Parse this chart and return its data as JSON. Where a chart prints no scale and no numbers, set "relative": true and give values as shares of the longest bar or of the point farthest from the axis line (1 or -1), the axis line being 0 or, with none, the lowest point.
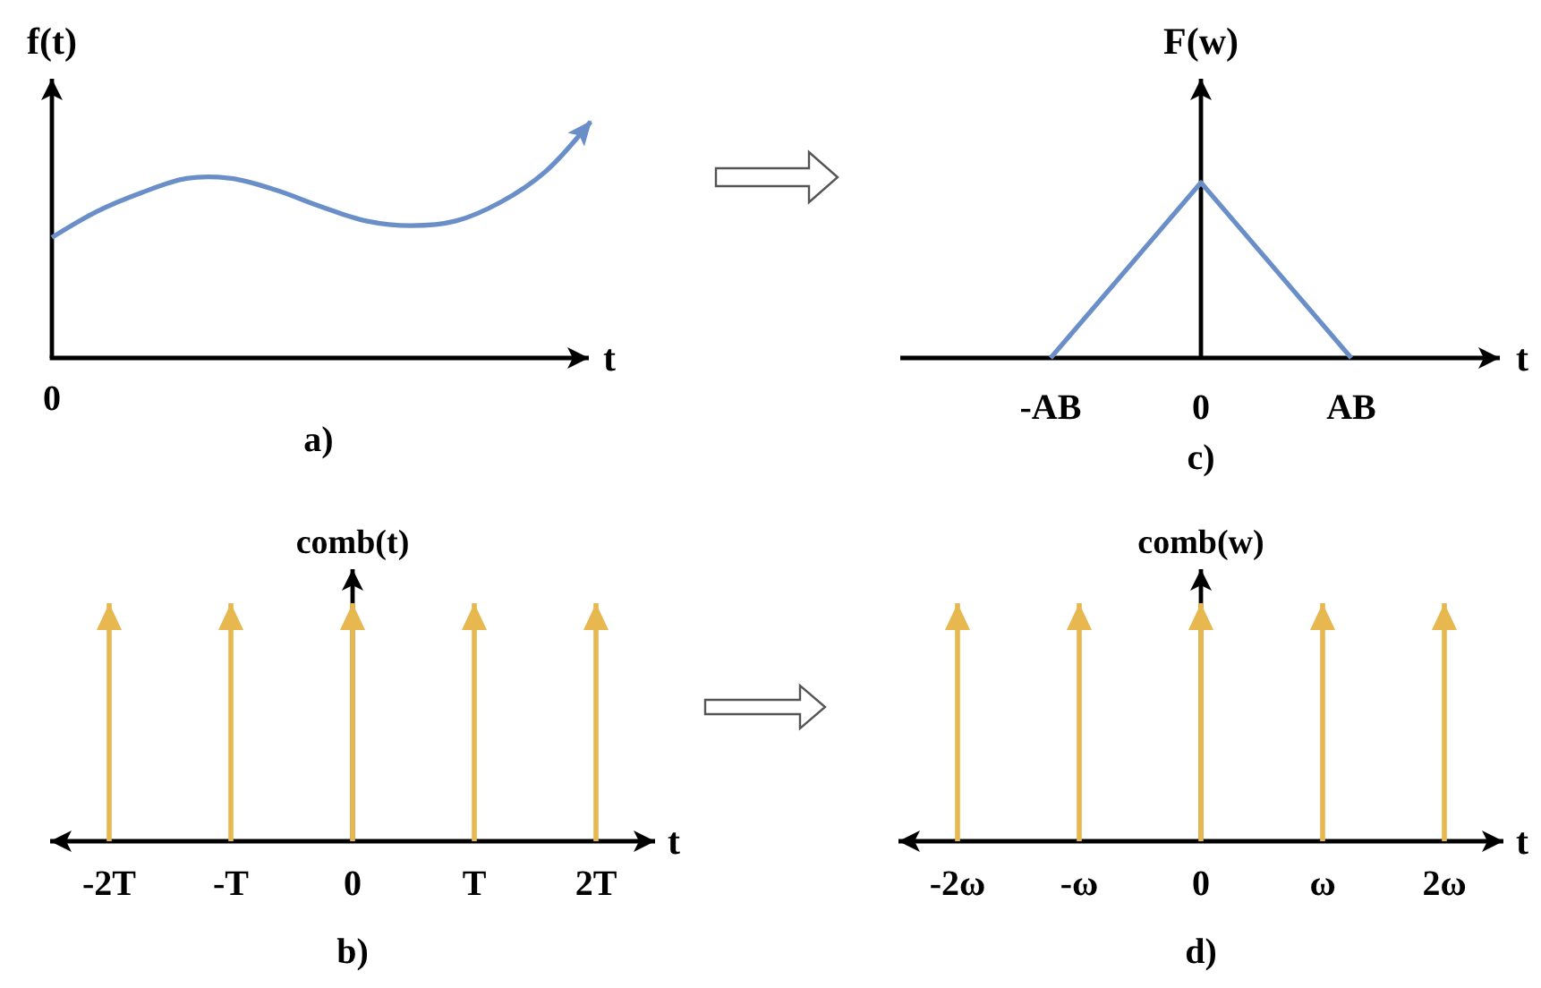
{
  "chart_data": [
    {
      "type": "line",
      "title": "a)",
      "xlabel": "t",
      "ylabel": "f(t)",
      "relative": true,
      "categories": [
        null,
        null,
        null,
        null,
        null,
        null,
        null,
        null,
        null,
        null,
        null,
        null,
        null
      ],
      "values": [
        0.51,
        0.62,
        0.7,
        0.76,
        0.76,
        0.71,
        0.64,
        0.58,
        0.56,
        0.58,
        0.66,
        0.79,
        1
      ],
      "color": "#6a8fc8",
      "annotations": [
        "0"
      ]
    },
    {
      "type": "line",
      "title": "c)",
      "xlabel": "t",
      "ylabel": "F(w)",
      "relative": true,
      "categories": [
        null,
        "-AB",
        "0",
        "AB",
        null
      ],
      "values": [
        null,
        0,
        1,
        0,
        null
      ],
      "color": "#6a8fc8"
    },
    {
      "type": "bar",
      "title": "b)",
      "xlabel": "t",
      "ylabel": "comb(t)",
      "relative": true,
      "categories": [
        "-2T",
        "-T",
        "0",
        "T",
        "2T"
      ],
      "values": [
        1,
        1,
        1,
        1,
        1
      ],
      "color": "#e6b84f"
    },
    {
      "type": "bar",
      "title": "d)",
      "xlabel": "t",
      "ylabel": "comb(w)",
      "relative": true,
      "categories": [
        "-2ω",
        "-ω",
        "0",
        "ω",
        "2ω"
      ],
      "values": [
        1,
        1,
        1,
        1,
        1
      ],
      "color": "#e6b84f"
    }
  ]
}
